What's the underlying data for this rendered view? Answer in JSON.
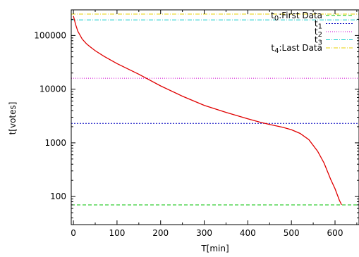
{
  "chart_data": {
    "type": "line",
    "xlabel": "T[min]",
    "ylabel": "t[votes]",
    "x_scale": "linear",
    "y_scale": "log",
    "xlim": [
      -5,
      655
    ],
    "ylim": [
      30,
      300000
    ],
    "x_ticks": [
      0,
      100,
      200,
      300,
      400,
      500,
      600
    ],
    "x_tick_labels": [
      "0",
      "100",
      "200",
      "300",
      "400",
      "500",
      "600"
    ],
    "y_ticks": [
      100,
      1000,
      10000,
      100000
    ],
    "y_tick_labels": [
      "100",
      "1000",
      "10000",
      "100000"
    ],
    "grid": false,
    "legend_position": "top-right",
    "curve": {
      "color": "#e00000",
      "x": [
        0,
        5,
        10,
        20,
        30,
        40,
        50,
        70,
        100,
        150,
        200,
        250,
        300,
        350,
        400,
        430,
        450,
        480,
        500,
        520,
        540,
        560,
        575,
        590,
        600,
        610,
        615
      ],
      "y": [
        230000,
        160000,
        120000,
        86000,
        70000,
        60000,
        52000,
        41000,
        30000,
        19000,
        11500,
        7400,
        5000,
        3700,
        2800,
        2400,
        2200,
        1950,
        1750,
        1500,
        1150,
        700,
        420,
        210,
        140,
        85,
        70
      ]
    },
    "reference_lines": [
      {
        "label_base": "t",
        "label_sub": "0",
        "label_rest": ":First Data",
        "y": 70,
        "color": "#00c000",
        "dash": "5,3"
      },
      {
        "label_base": "t",
        "label_sub": "1",
        "label_rest": "",
        "y": 2300,
        "color": "#0000c0",
        "dash": "2,2"
      },
      {
        "label_base": "t",
        "label_sub": "2",
        "label_rest": "",
        "y": 16000,
        "color": "#d000d0",
        "dash": "1,2"
      },
      {
        "label_base": "t",
        "label_sub": "3",
        "label_rest": "",
        "y": 195000,
        "color": "#00c8c8",
        "dash": "6,2,1,2"
      },
      {
        "label_base": "t",
        "label_sub": "4",
        "label_rest": ":Last Data",
        "y": 250000,
        "color": "#e8d000",
        "dash": "6,2,1,2"
      }
    ]
  }
}
